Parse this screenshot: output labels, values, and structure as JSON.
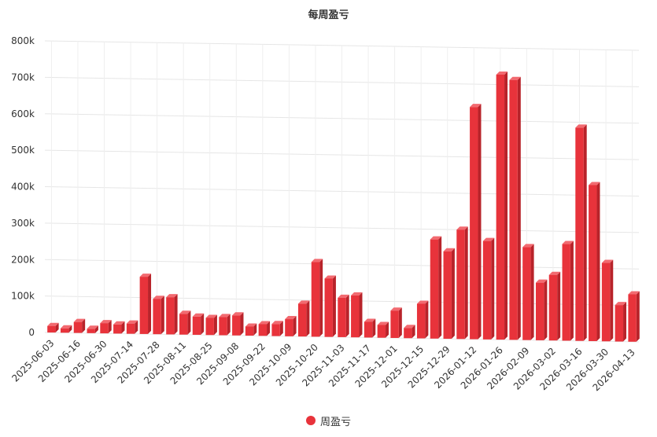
{
  "chart_data": {
    "type": "bar",
    "title": "每周盈亏",
    "xlabel": "",
    "ylabel": "",
    "ylim": [
      0,
      800000
    ],
    "y_tick_values": [
      0,
      100000,
      200000,
      300000,
      400000,
      500000,
      600000,
      700000,
      800000
    ],
    "y_tick_labels": [
      "0",
      "100k",
      "200k",
      "300k",
      "400k",
      "500k",
      "600k",
      "700k",
      "800k"
    ],
    "grid": true,
    "legend": "bottom-center",
    "color": "#e8333b",
    "x_tick_labels": [
      "2025-06-03",
      "2025-06-16",
      "2025-06-30",
      "2025-07-14",
      "2025-07-28",
      "2025-08-11",
      "2025-08-25",
      "2025-09-08",
      "2025-09-22",
      "2025-10-09",
      "2025-10-20",
      "2025-11-03",
      "2025-11-17",
      "2025-12-01",
      "2025-12-15",
      "2025-12-29",
      "2026-01-12",
      "2026-01-26",
      "2026-02-09",
      "2026-03-02",
      "2026-03-16",
      "2026-03-30",
      "2026-04-13"
    ],
    "series": [
      {
        "name": "周盈亏",
        "values": [
          18000,
          12000,
          30000,
          12000,
          28000,
          25000,
          28000,
          157000,
          97000,
          102000,
          57000,
          50000,
          47000,
          50000,
          55000,
          25000,
          32000,
          33000,
          47000,
          90000,
          205000,
          160000,
          108000,
          115000,
          43000,
          35000,
          75000,
          28000,
          95000,
          272000,
          240000,
          300000,
          637000,
          270000,
          727000,
          713000,
          255000,
          158000,
          180000,
          265000,
          585000,
          428000,
          215000,
          100000,
          130000
        ]
      }
    ]
  }
}
